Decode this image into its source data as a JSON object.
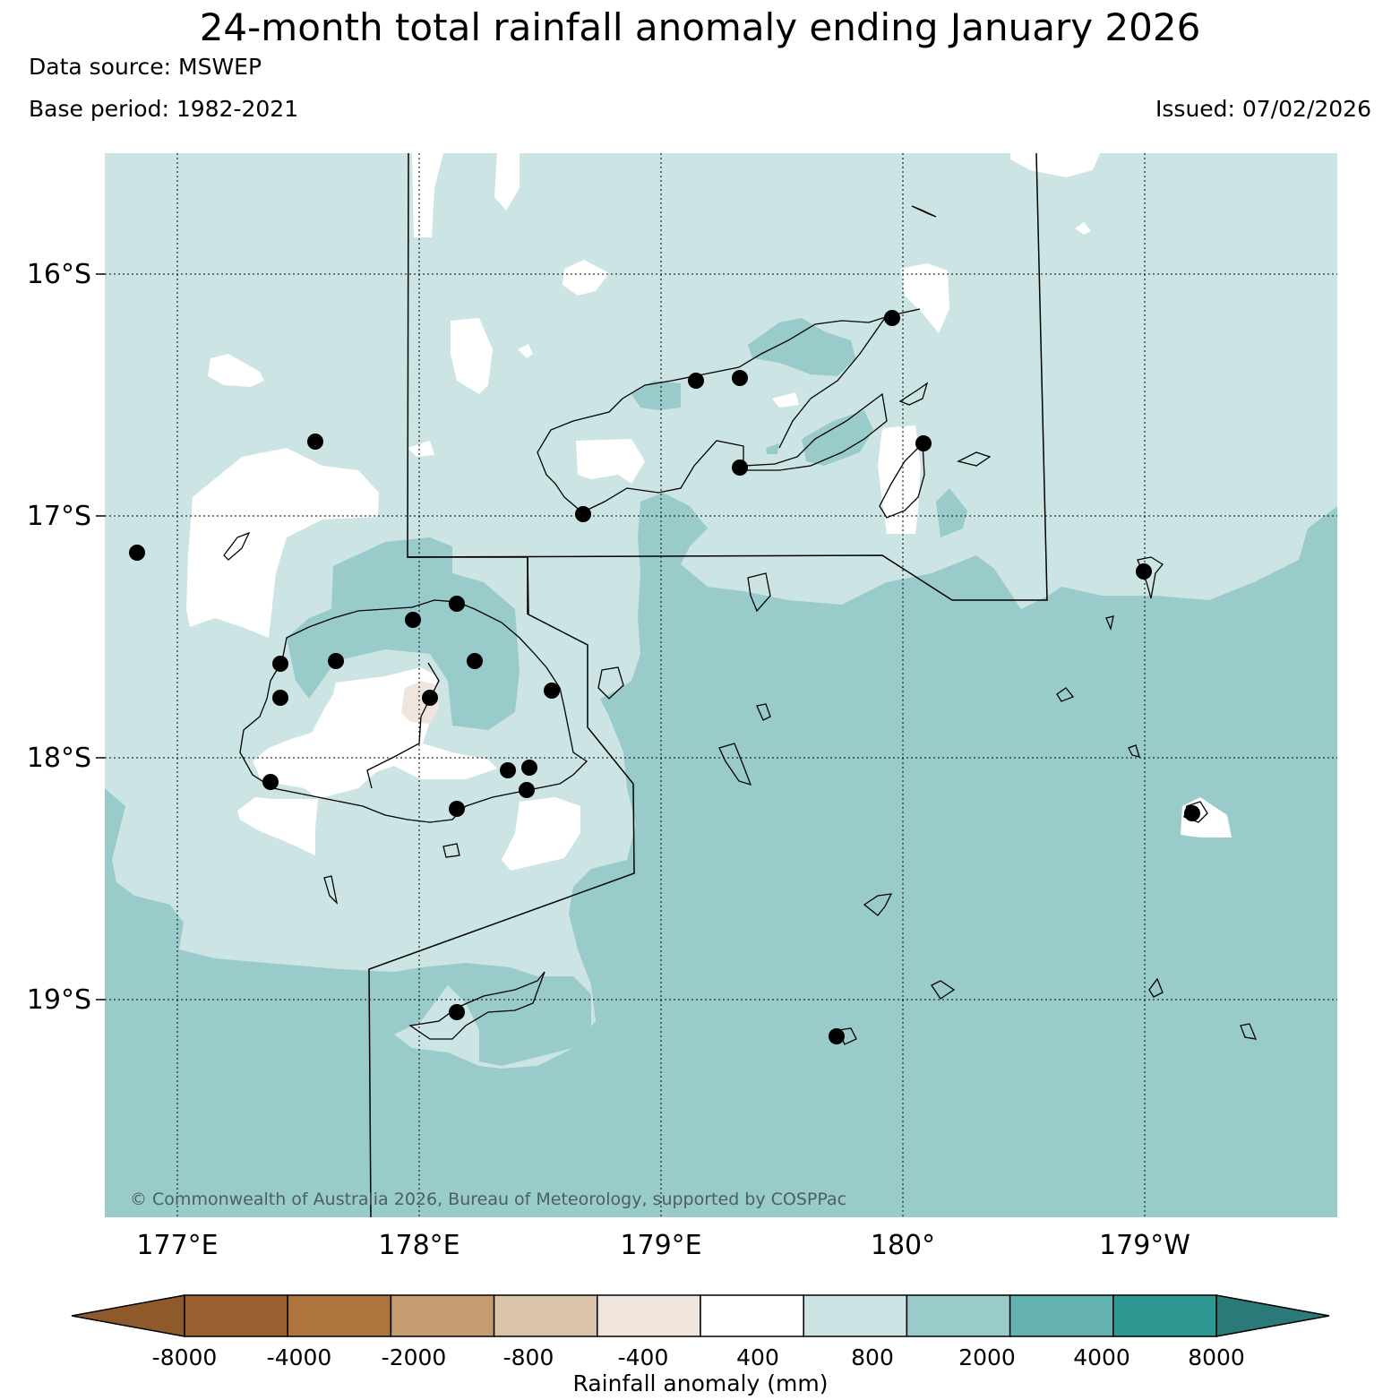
{
  "header": {
    "title": "24-month total rainfall anomaly ending January 2026",
    "data_source": "Data source: MSWEP",
    "base_period": "Base period: 1982-2021",
    "issued": "Issued: 07/02/2026"
  },
  "map": {
    "lat_labels": [
      "16°S",
      "17°S",
      "18°S",
      "19°S"
    ],
    "lon_labels": [
      "177°E",
      "178°E",
      "179°E",
      "180°",
      "179°W"
    ],
    "copyright": "© Commonwealth of Australia 2026, Bureau of Meteorology, supported by COSPPac"
  },
  "colorbar": {
    "title": "Rainfall anomaly (mm)",
    "tick_labels": [
      "-8000",
      "-4000",
      "-2000",
      "-800",
      "-400",
      "400",
      "800",
      "2000",
      "4000",
      "8000"
    ],
    "colors": [
      "#9a6030",
      "#ae763e",
      "#c49c70",
      "#dac3a9",
      "#efe5dc",
      "#ffffff",
      "#cce4e3",
      "#9acbcb",
      "#63b1b0",
      "#2e9993"
    ],
    "under_color": "#8e5a2c",
    "over_color": "#2a7a78"
  }
}
